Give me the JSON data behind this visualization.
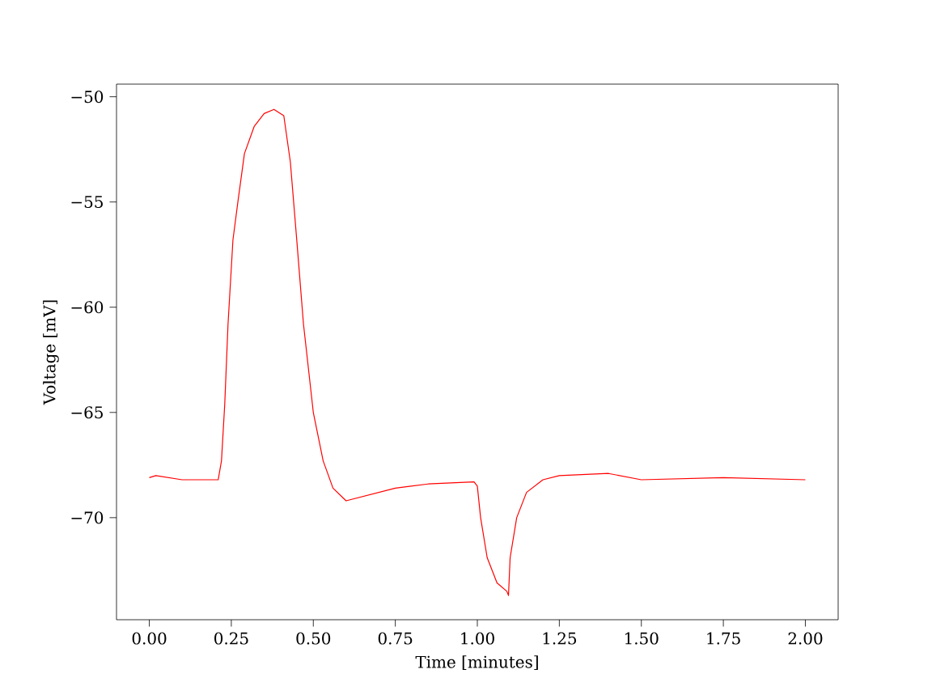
{
  "chart_data": {
    "type": "line",
    "xlabel": "Time [minutes]",
    "ylabel": "Voltage [mV]",
    "x": [
      0,
      0.02,
      0.1,
      0.21,
      0.22,
      0.23,
      0.24,
      0.255,
      0.27,
      0.29,
      0.32,
      0.35,
      0.38,
      0.41,
      0.43,
      0.45,
      0.47,
      0.5,
      0.53,
      0.56,
      0.6,
      0.65,
      0.75,
      0.85,
      0.99,
      1.0,
      1.01,
      1.03,
      1.06,
      1.09,
      1.095,
      1.1,
      1.12,
      1.15,
      1.2,
      1.25,
      1.4,
      1.5,
      1.75,
      2.0
    ],
    "series": [
      {
        "color": "#ff0000",
        "values": [
          -68.1,
          -68.0,
          -68.2,
          -68.2,
          -67.3,
          -64.6,
          -60.8,
          -56.8,
          -55.0,
          -52.7,
          -51.4,
          -50.8,
          -50.6,
          -50.9,
          -53.1,
          -56.9,
          -60.8,
          -65.0,
          -67.3,
          -68.6,
          -69.2,
          -69.0,
          -68.6,
          -68.4,
          -68.3,
          -68.5,
          -70.0,
          -71.9,
          -73.1,
          -73.5,
          -73.7,
          -71.9,
          -70.0,
          -68.8,
          -68.2,
          -68.0,
          -67.9,
          -68.2,
          -68.1,
          -68.2
        ]
      }
    ],
    "xlim": [
      -0.1,
      2.1
    ],
    "ylim": [
      -74.85,
      -49.4
    ],
    "xticks": [
      {
        "value": 0,
        "label": "0.00"
      },
      {
        "value": 0.25,
        "label": "0.25"
      },
      {
        "value": 0.5,
        "label": "0.50"
      },
      {
        "value": 0.75,
        "label": "0.75"
      },
      {
        "value": 1,
        "label": "1.00"
      },
      {
        "value": 1.25,
        "label": "1.25"
      },
      {
        "value": 1.5,
        "label": "1.50"
      },
      {
        "value": 1.75,
        "label": "1.75"
      },
      {
        "value": 2,
        "label": "2.00"
      }
    ],
    "yticks": [
      {
        "value": -70,
        "label": "−70"
      },
      {
        "value": -65,
        "label": "−65"
      },
      {
        "value": -60,
        "label": "−60"
      },
      {
        "value": -55,
        "label": "−55"
      },
      {
        "value": -50,
        "label": "−50"
      }
    ],
    "grid": false,
    "marker": "none",
    "line_style": "solid"
  }
}
